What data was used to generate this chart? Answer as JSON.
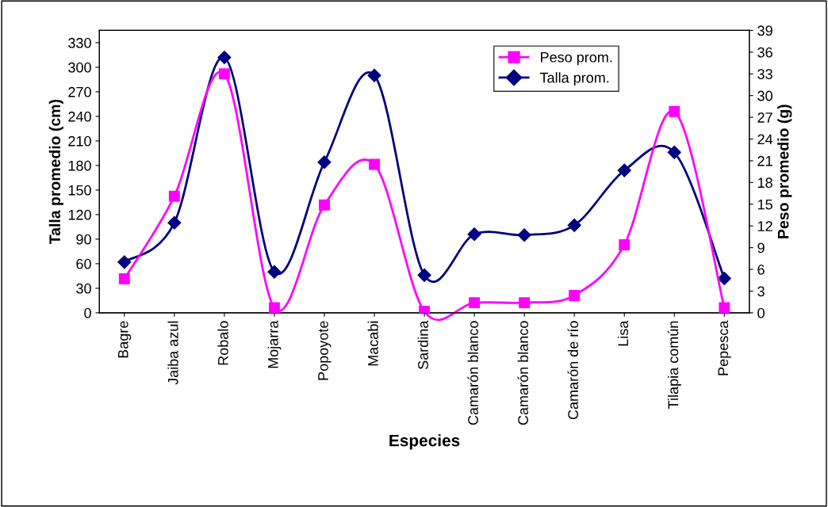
{
  "chart_data": {
    "type": "line",
    "xlabel": "Especies",
    "ylabel": "Talla promedio (cm)",
    "y2label": "Peso promedio (g)",
    "categories": [
      "Bagre",
      "Jaiba azul",
      "Robalo",
      "Mojarra",
      "Popoyote",
      "Macabi",
      "Sardina",
      "Camarón blanco",
      "Camarón blanco",
      "Camarón de río",
      "Lisa",
      "Tilapia común",
      "Pepesca"
    ],
    "series": [
      {
        "name": "Peso prom.",
        "color": "#ff00ff",
        "axis": "y2",
        "marker": "square",
        "values": [
          4.7,
          16.1,
          33.0,
          0.7,
          14.9,
          20.5,
          0.2,
          1.4,
          1.4,
          2.4,
          9.4,
          27.8,
          0.7
        ]
      },
      {
        "name": "Talla prom.",
        "color": "#000080",
        "axis": "y",
        "marker": "diamond",
        "values": [
          62,
          110,
          312,
          50,
          184,
          290,
          46,
          96,
          95,
          107,
          174,
          196,
          42
        ]
      }
    ],
    "ylim": [
      0,
      345
    ],
    "yticks": [
      0,
      30,
      60,
      90,
      120,
      150,
      180,
      210,
      240,
      270,
      300,
      330
    ],
    "y2lim": [
      0,
      39
    ],
    "y2ticks": [
      0,
      3,
      6,
      9,
      12,
      15,
      18,
      21,
      24,
      27,
      30,
      33,
      36,
      39
    ],
    "legend": "top right",
    "grid": false,
    "line_style": "solid"
  }
}
